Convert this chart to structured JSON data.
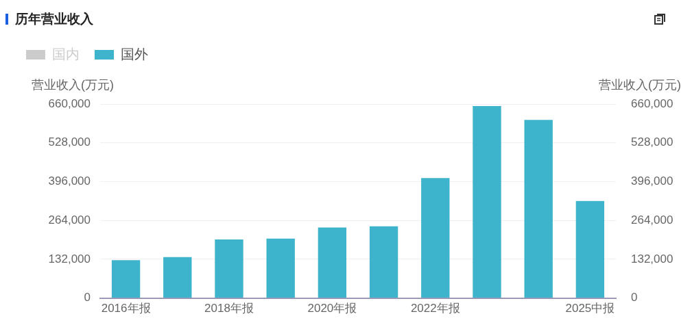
{
  "chart_data": {
    "type": "bar",
    "title": "历年营业收入",
    "categories": [
      "2016年报",
      null,
      "2018年报",
      null,
      "2020年报",
      null,
      "2022年报",
      null,
      null,
      "2025中报"
    ],
    "series": [
      {
        "name": "国内",
        "color": "#cccccc",
        "values": [
          null,
          null,
          null,
          null,
          null,
          null,
          null,
          null,
          null,
          null
        ]
      },
      {
        "name": "国外",
        "color": "#3db3cc",
        "values": [
          129000,
          139000,
          199000,
          202000,
          240000,
          244000,
          408000,
          653000,
          606000,
          330000
        ]
      }
    ],
    "ylabel": "营业收入(万元)",
    "y2label": "营业收入(万元)",
    "ylim": [
      0,
      660000
    ],
    "yticks": [
      0,
      {
        "value": 132000,
        "label": "132,000"
      },
      {
        "value": 264000,
        "label": "264,000"
      },
      {
        "value": 396000,
        "label": "396,000"
      },
      {
        "value": 528000,
        "label": "528,000"
      },
      {
        "value": 660000,
        "label": "660,000"
      }
    ],
    "y2lim": [
      0,
      660000
    ],
    "y2ticks": [
      0,
      {
        "value": 132000,
        "label": "132,000"
      },
      {
        "value": 264000,
        "label": "264,000"
      },
      {
        "value": 396000,
        "label": "396,000"
      },
      {
        "value": 528000,
        "label": "528,000"
      },
      {
        "value": 660000,
        "label": "660,000"
      }
    ],
    "grid": "y",
    "legend": "top left"
  }
}
